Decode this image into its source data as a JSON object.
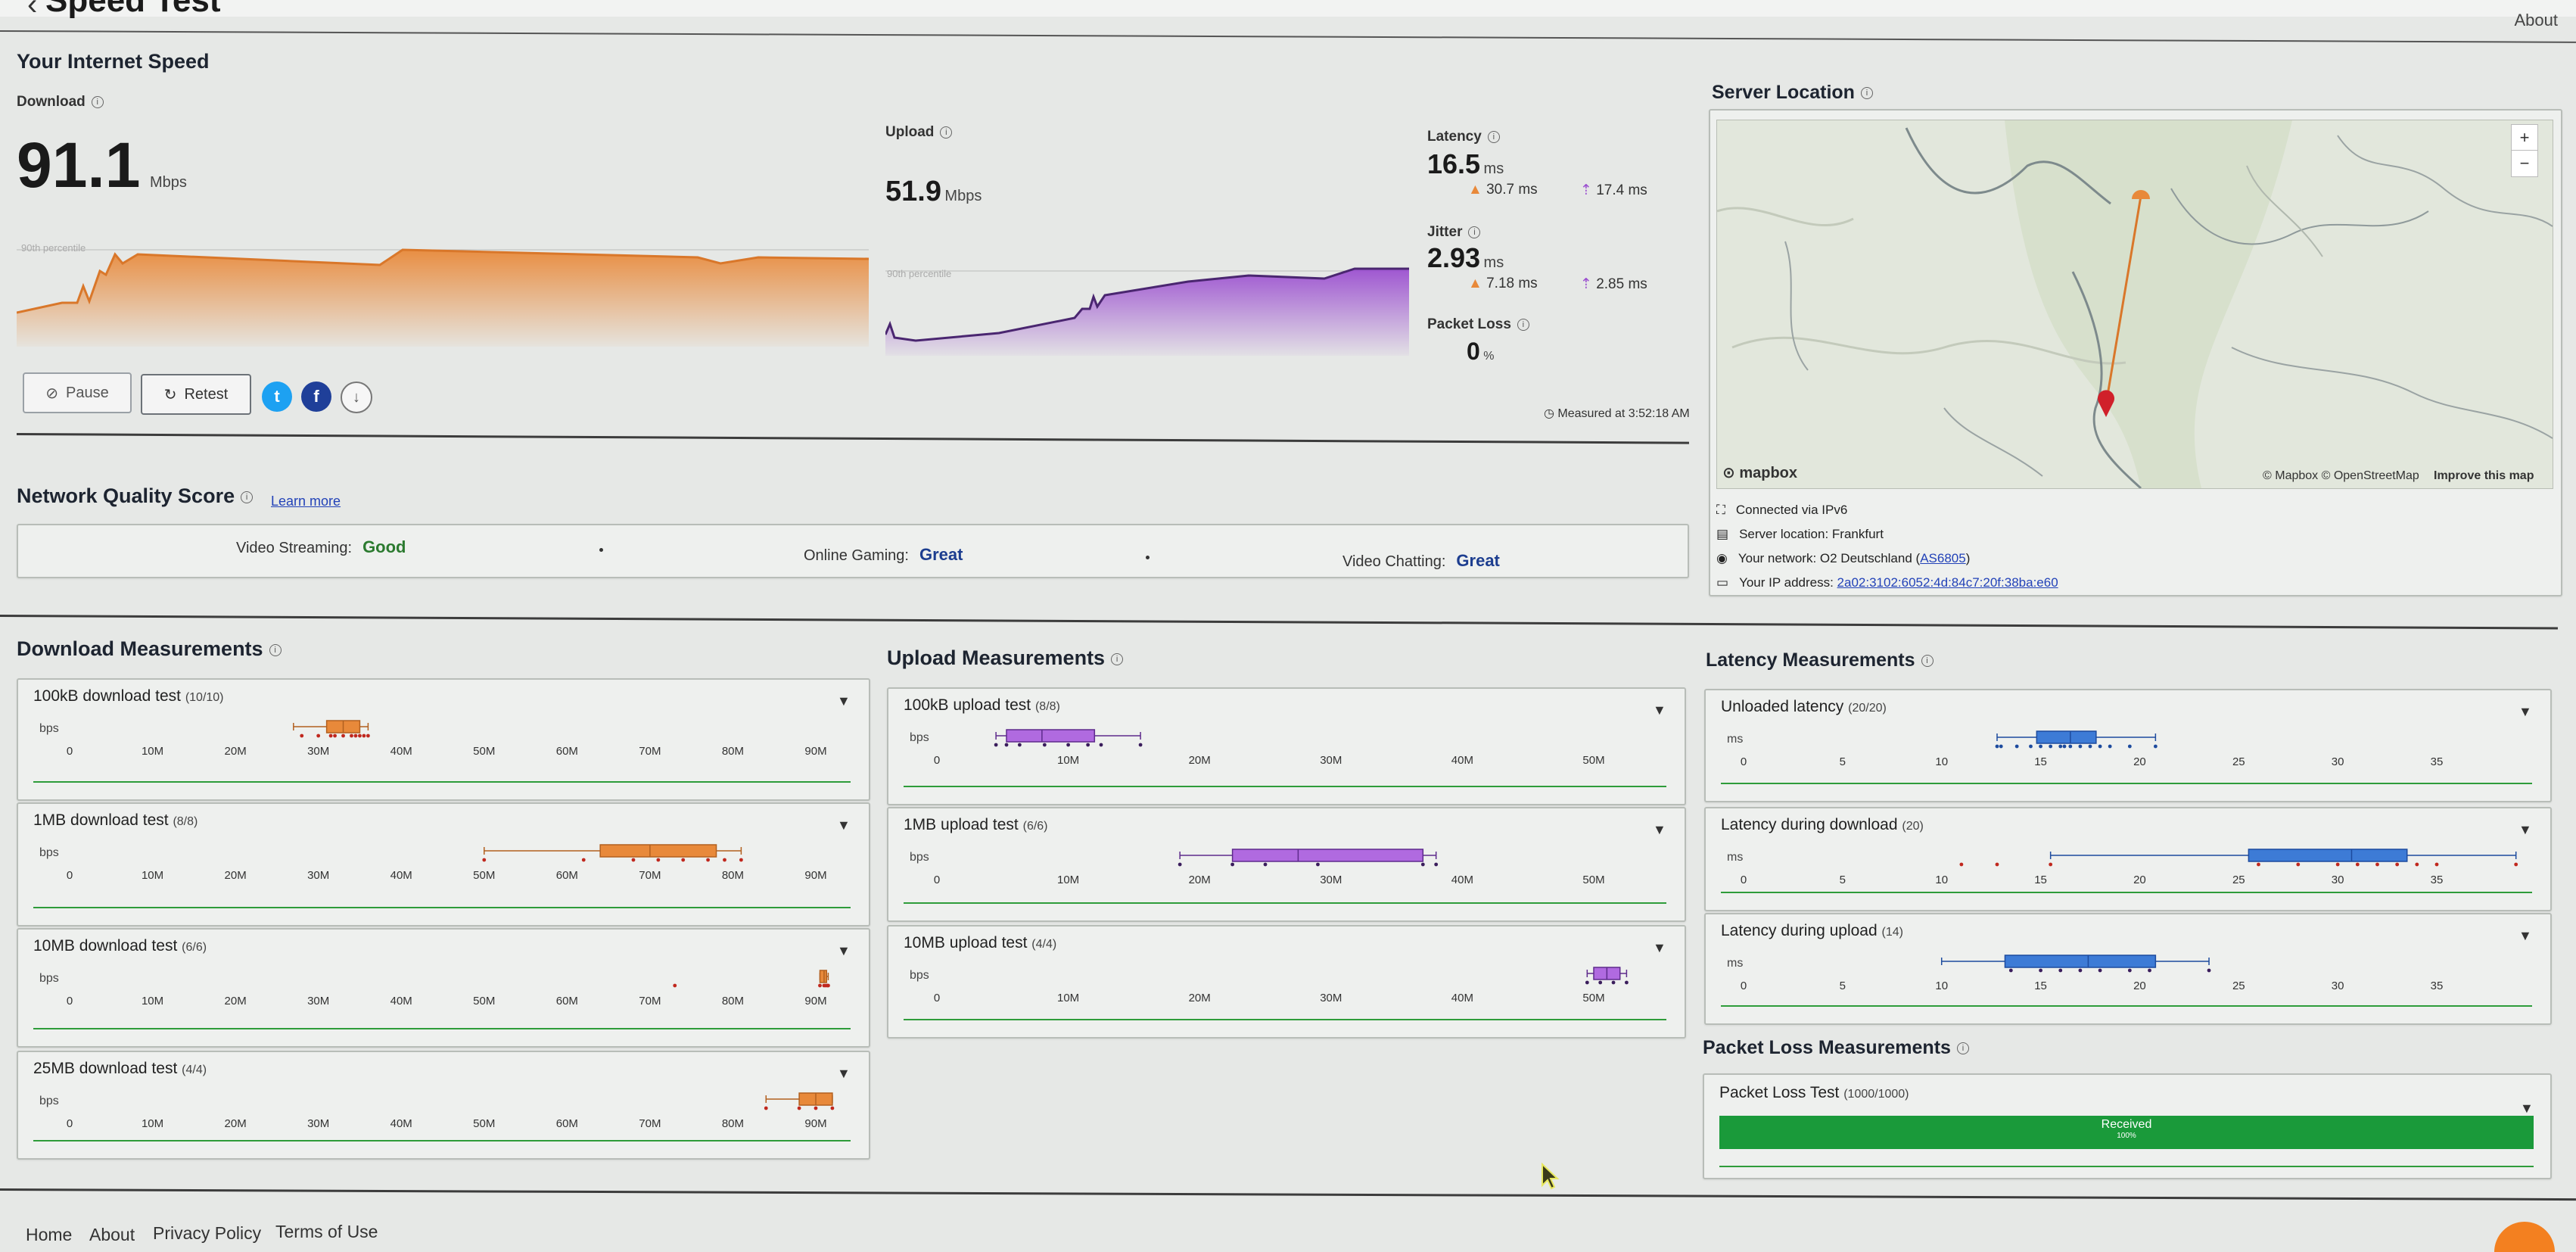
{
  "app": {
    "title": "Speed Test",
    "about_label": "About"
  },
  "speed": {
    "section_title": "Your Internet Speed",
    "download": {
      "label": "Download",
      "value": "91.1",
      "unit": "Mbps",
      "percentile_label": "90th percentile"
    },
    "upload": {
      "label": "Upload",
      "value": "51.9",
      "unit": "Mbps",
      "percentile_label": "90th percentile"
    },
    "latency": {
      "label": "Latency",
      "value": "16.5",
      "unit": "ms",
      "down": "30.7 ms",
      "up": "17.4 ms"
    },
    "jitter": {
      "label": "Jitter",
      "value": "2.93",
      "unit": "ms",
      "down": "7.18 ms",
      "up": "2.85 ms"
    },
    "packet_loss": {
      "label": "Packet Loss",
      "value": "0",
      "unit": "%"
    },
    "measured_at": "Measured at 3:52:18 AM",
    "buttons": {
      "pause": "Pause",
      "retest": "Retest"
    }
  },
  "server": {
    "title": "Server Location",
    "map_credit": "© Mapbox © OpenStreetMap",
    "improve": "Improve this map",
    "mapbox_logo": "mapbox",
    "connected": "Connected via IPv6",
    "server_location": "Server location: Frankfurt",
    "network_prefix": "Your network: O2 Deutschland (",
    "network_as": "AS6805",
    "network_suffix": ")",
    "ip_prefix": "Your IP address: ",
    "ip": "2a02:3102:6052:4d:84c7:20f:38ba:e60"
  },
  "nqs": {
    "title": "Network Quality Score",
    "learn_more": "Learn more",
    "items": [
      {
        "label": "Video Streaming:",
        "value": "Good"
      },
      {
        "label": "Online Gaming:",
        "value": "Great"
      },
      {
        "label": "Video Chatting:",
        "value": "Great"
      }
    ]
  },
  "download_measurements": {
    "title": "Download Measurements",
    "axis_unit": "bps",
    "ticks": [
      "0",
      "10M",
      "20M",
      "30M",
      "40M",
      "50M",
      "60M",
      "70M",
      "80M",
      "90M"
    ],
    "tests": [
      {
        "name": "100kB download test",
        "count": "(10/10)"
      },
      {
        "name": "1MB download test",
        "count": "(8/8)"
      },
      {
        "name": "10MB download test",
        "count": "(6/6)"
      },
      {
        "name": "25MB download test",
        "count": "(4/4)"
      }
    ]
  },
  "upload_measurements": {
    "title": "Upload Measurements",
    "axis_unit": "bps",
    "ticks": [
      "0",
      "10M",
      "20M",
      "30M",
      "40M",
      "50M"
    ],
    "tests": [
      {
        "name": "100kB upload test",
        "count": "(8/8)"
      },
      {
        "name": "1MB upload test",
        "count": "(6/6)"
      },
      {
        "name": "10MB upload test",
        "count": "(4/4)"
      }
    ]
  },
  "latency_measurements": {
    "title": "Latency Measurements",
    "axis_unit": "ms",
    "ticks": [
      "0",
      "5",
      "10",
      "15",
      "20",
      "25",
      "30",
      "35"
    ],
    "tests": [
      {
        "name": "Unloaded latency",
        "count": "(20/20)"
      },
      {
        "name": "Latency during download",
        "count": "(20)"
      },
      {
        "name": "Latency during upload",
        "count": "(14)"
      }
    ]
  },
  "packet_loss_measurements": {
    "title": "Packet Loss Measurements",
    "test_name": "Packet Loss Test",
    "count": "(1000/1000)",
    "bar_label": "Received",
    "bar_pct": "100%",
    "received_fraction": 1.0
  },
  "footer": {
    "links": [
      "Home",
      "About",
      "Privacy Policy",
      "Terms of Use"
    ]
  },
  "colors": {
    "download": "#e8893a",
    "upload": "#9b4fd0",
    "latency": "#3d7bd6",
    "good": "#2b7a2f",
    "packet": "#1a9a3a"
  },
  "box_data": {
    "download": [
      {
        "lo": 27,
        "q1": 31,
        "med": 33,
        "q3": 35,
        "hi": 36,
        "pts": [
          28,
          30,
          31.5,
          32,
          33,
          34,
          34.5,
          35,
          35.5,
          36
        ]
      },
      {
        "lo": 50,
        "q1": 64,
        "med": 70,
        "q3": 78,
        "hi": 81,
        "pts": [
          50,
          62,
          68,
          71,
          74,
          77,
          79,
          81
        ]
      },
      {
        "lo": 90.5,
        "q1": 90.5,
        "med": 91,
        "q3": 91.3,
        "hi": 91.5,
        "pts": [
          73,
          90.5,
          91,
          91.2,
          91.4,
          91.5
        ]
      },
      {
        "lo": 84,
        "q1": 88,
        "med": 90,
        "q3": 92,
        "hi": 92,
        "pts": [
          84,
          88,
          90,
          92
        ]
      }
    ],
    "upload": [
      {
        "lo": 4.5,
        "q1": 5.3,
        "med": 8,
        "q3": 12,
        "hi": 15.5,
        "pts": [
          4.5,
          5.3,
          6.3,
          8.2,
          10,
          11.5,
          12.5,
          15.5
        ]
      },
      {
        "lo": 18.5,
        "q1": 22.5,
        "med": 27.5,
        "q3": 37,
        "hi": 38,
        "pts": [
          18.5,
          22.5,
          25,
          29,
          37,
          38
        ]
      },
      {
        "lo": 49.5,
        "q1": 50,
        "med": 51,
        "q3": 52,
        "hi": 52.5,
        "pts": [
          49.5,
          50.5,
          51.5,
          52.5
        ]
      }
    ],
    "latency": [
      {
        "lo": 12.8,
        "q1": 14.8,
        "med": 16.5,
        "q3": 17.8,
        "hi": 20.8,
        "pts": [
          12.8,
          13,
          13.8,
          14.5,
          15,
          15.5,
          16,
          16.2,
          16.5,
          17,
          17.5,
          18,
          18.5,
          19.5,
          20.8
        ]
      },
      {
        "lo": 15.5,
        "q1": 25.5,
        "med": 30.7,
        "q3": 33.5,
        "hi": 39,
        "pts": [
          11,
          12.8,
          15.5,
          26,
          28,
          30,
          31,
          32,
          33,
          34,
          35,
          39
        ]
      },
      {
        "lo": 10,
        "q1": 13.2,
        "med": 17.4,
        "q3": 20.8,
        "hi": 23.5,
        "pts": [
          13.5,
          15,
          16,
          17,
          18,
          19.5,
          20.5,
          23.5
        ]
      }
    ]
  }
}
